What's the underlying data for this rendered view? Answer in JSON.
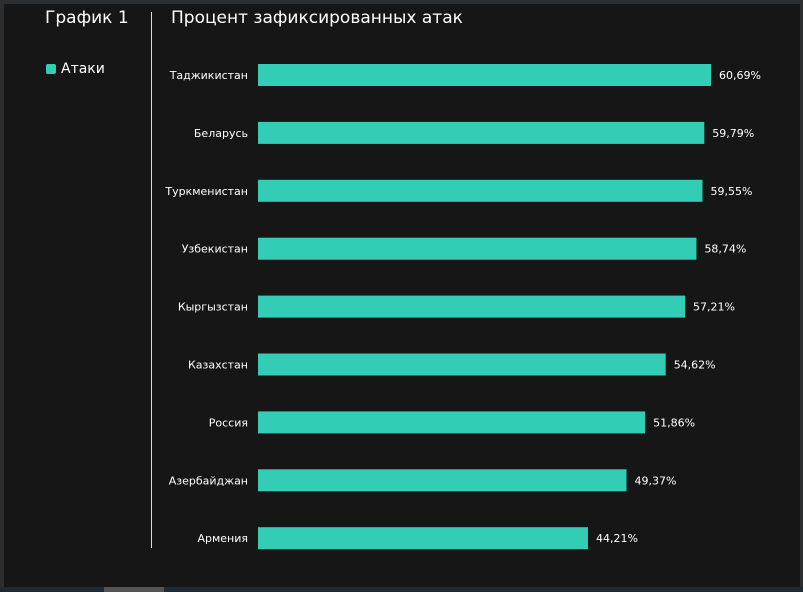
{
  "chart_data": {
    "type": "bar",
    "orientation": "horizontal",
    "panel_title": "График 1",
    "title": "Процент зафиксированных атак",
    "legend": [
      {
        "label": "Атаки",
        "color": "#33cdb6"
      }
    ],
    "legend_position": "left",
    "categories": [
      "Таджикистан",
      "Беларусь",
      "Туркменистан",
      "Узбекистан",
      "Кыргызстан",
      "Казахстан",
      "Россия",
      "Азербайджан",
      "Армения"
    ],
    "series": [
      {
        "name": "Атаки",
        "values": [
          60.69,
          59.79,
          59.55,
          58.74,
          57.21,
          54.62,
          51.86,
          49.37,
          44.21
        ]
      }
    ],
    "data_labels": [
      "60,69%",
      "59,79%",
      "59,55%",
      "58,74%",
      "57,21%",
      "54,62%",
      "51,86%",
      "49,37%",
      "44,21%"
    ],
    "xlim": [
      0,
      60.69
    ],
    "grid": false
  }
}
